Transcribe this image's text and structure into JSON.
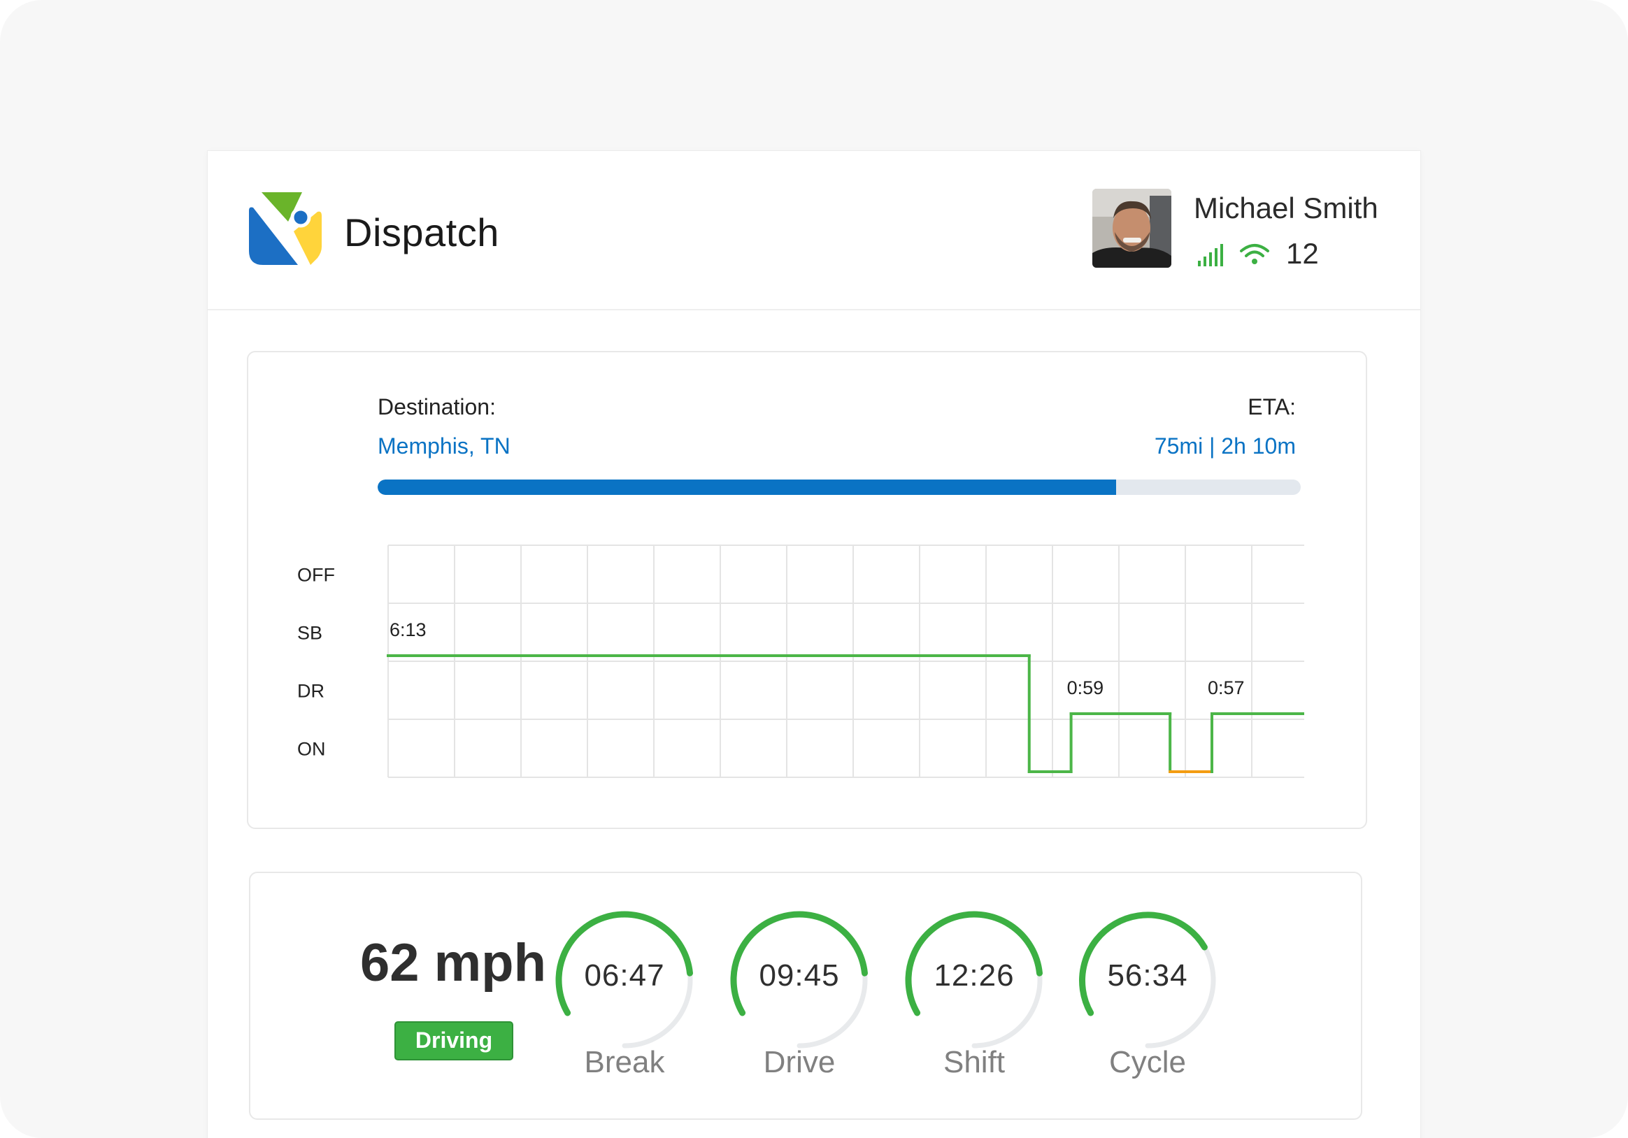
{
  "header": {
    "app_title": "Dispatch",
    "logo_icon": "dispatch-logo",
    "user": {
      "name": "Michael Smith",
      "avatar": "avatar-photo",
      "signal_icon": "signal-bars-icon",
      "wifi_icon": "wifi-icon",
      "count": "12"
    }
  },
  "trip": {
    "destination_label": "Destination:",
    "destination_value": "Memphis, TN",
    "eta_label": "ETA:",
    "eta_value": "75mi | 2h 10m",
    "progress": 0.8
  },
  "chart_data": {
    "type": "line",
    "step": true,
    "y_categories": [
      "OFF",
      "SB",
      "DR",
      "ON"
    ],
    "x_grid_columns": 14,
    "grid": true,
    "series": [
      {
        "points": [
          [
            0,
            "SB"
          ],
          [
            9.65,
            "SB"
          ],
          [
            9.65,
            "ON"
          ],
          [
            10.28,
            "ON"
          ],
          [
            10.28,
            "DR"
          ],
          [
            11.77,
            "DR"
          ],
          [
            11.77,
            "ON"
          ],
          [
            12.4,
            "ON"
          ],
          [
            12.4,
            "DR"
          ],
          [
            13.9,
            "DR"
          ]
        ],
        "colors": [
          "#4cb648",
          "#4cb648",
          "#4cb648",
          "#4cb648",
          "#4cb648",
          "#4cb648",
          "#f39c12",
          "#4cb648",
          "#4cb648"
        ]
      }
    ],
    "annotations": [
      {
        "text": "6:13",
        "x": 0,
        "y": "SB"
      },
      {
        "text": "0:59",
        "x": 10.28,
        "y": "DR"
      },
      {
        "text": "0:57",
        "x": 12.4,
        "y": "DR"
      }
    ]
  },
  "stats": {
    "speed": "62 mph",
    "status_badge": "Driving",
    "accent_color": "#3cb043",
    "gauges": [
      {
        "value": "06:47",
        "label": "Break",
        "fraction": 0.68
      },
      {
        "value": "09:45",
        "label": "Drive",
        "fraction": 0.68
      },
      {
        "value": "12:26",
        "label": "Shift",
        "fraction": 0.68
      },
      {
        "value": "56:34",
        "label": "Cycle",
        "fraction": 0.6
      }
    ]
  }
}
